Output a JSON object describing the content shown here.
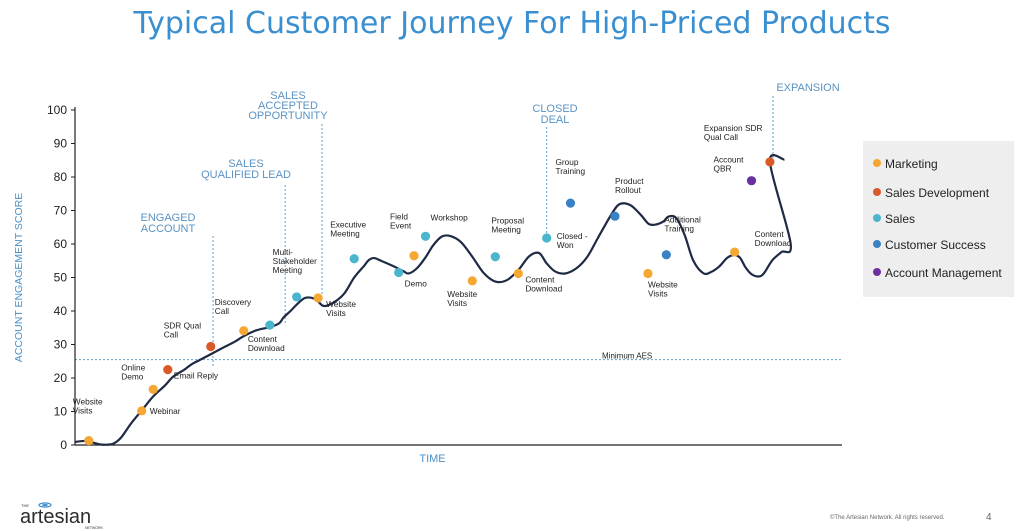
{
  "page": {
    "title": "Typical Customer Journey For High-Priced Products",
    "copyright": "©The Artesian Network. All rights reserved.",
    "page_number": "4",
    "logo_text": "artesian",
    "logo_small_top": "THE",
    "logo_small_bottom": "NETWORK"
  },
  "colors": {
    "Marketing": "#f5a733",
    "Sales Development": "#d85a28",
    "Sales": "#4ab5cc",
    "Customer Success": "#3a82c4",
    "Account Management": "#6b2fa0"
  },
  "legend": [
    {
      "name": "Marketing",
      "label": "Marketing"
    },
    {
      "name": "Sales Development",
      "label": "Sales Development"
    },
    {
      "name": "Sales",
      "label": "Sales"
    },
    {
      "name": "Customer Success",
      "label": "Customer Success"
    },
    {
      "name": "Account Management",
      "label": "Account Management"
    }
  ],
  "chart_data": {
    "type": "line",
    "title": "",
    "xlabel": "TIME",
    "ylabel": "ACCOUNT ENGAGEMENT SCORE",
    "ylim": [
      0,
      100
    ],
    "yticks": [
      0,
      10,
      20,
      30,
      40,
      50,
      60,
      70,
      80,
      90,
      100
    ],
    "legend_position": "right",
    "threshold": {
      "value": 25.5,
      "label": "Minimum AES"
    },
    "curve_x": [
      0,
      1.4,
      3.2,
      4.1,
      5.0,
      6.0,
      7.3,
      8.7,
      10.2,
      11.7,
      12.8,
      14.2,
      15.2,
      16.2,
      17.7,
      19.1,
      20.8,
      22.0,
      23.6,
      25.4,
      26.6,
      27.2,
      28.1,
      28.9,
      30.0,
      31.3,
      32.4,
      33.7,
      35.1,
      36.4,
      37.7,
      38.3,
      39.0,
      40.0,
      41.4,
      42.8,
      43.5,
      44.6,
      45.7,
      46.7,
      47.8,
      48.9,
      50.3,
      51.8,
      53.3,
      54.8,
      56.3,
      57.8,
      59.2,
      60.5,
      61.5,
      62.6,
      63.9,
      65.4,
      66.8,
      68.2,
      69.9,
      71.0,
      72.4,
      73.8,
      74.8,
      75.7,
      76.7,
      77.4,
      78.4,
      79.5,
      80.6,
      81.9,
      82.9,
      84.0,
      85.0,
      85.9,
      86.7,
      87.4,
      88.2,
      89.1,
      89.8,
      90.9,
      92.1,
      93.3
    ],
    "curve_y": [
      0.9,
      1.2,
      0.2,
      0.1,
      0.4,
      2.2,
      6.4,
      10.3,
      14.5,
      17.7,
      20.4,
      22.4,
      24.1,
      25.3,
      27.1,
      28.8,
      30.8,
      32.5,
      34.2,
      35.2,
      36.3,
      38.1,
      40.0,
      41.9,
      43.9,
      43.6,
      41.5,
      42.5,
      45.2,
      50.0,
      53.5,
      55.2,
      55.8,
      54.9,
      53.5,
      51.9,
      51.2,
      52.8,
      56.0,
      59.6,
      62.2,
      62.4,
      60.6,
      56.2,
      51.3,
      48.8,
      49.2,
      52.2,
      56.3,
      57.3,
      54.2,
      51.8,
      51.2,
      52.8,
      56.2,
      61.9,
      68.7,
      71.9,
      71.6,
      68.6,
      66.0,
      65.8,
      66.7,
      68.2,
      67.7,
      62.6,
      55.1,
      51.3,
      51.6,
      53.3,
      55.8,
      56.7,
      55.9,
      53.1,
      51.0,
      50.3,
      51.2,
      55.1,
      57.6,
      60.2
    ],
    "markers": [
      {
        "label": "Website Visits",
        "category": "Marketing",
        "x": 1.8,
        "y": 1.3
      },
      {
        "label": "Webinar",
        "category": "Marketing",
        "x": 8.7,
        "y": 10.2
      },
      {
        "label": "Online Demo",
        "category": "Marketing",
        "x": 10.2,
        "y": 16.6
      },
      {
        "label": "Email Reply",
        "category": "Sales Development",
        "x": 12.1,
        "y": 22.5
      },
      {
        "label": "SDR Qual Call",
        "category": "Sales Development",
        "x": 17.7,
        "y": 29.4
      },
      {
        "label": "Discovery Call",
        "category": "Marketing",
        "x": 22.0,
        "y": 34.1
      },
      {
        "label": "Content Download",
        "category": "Sales",
        "x": 25.4,
        "y": 35.8
      },
      {
        "label": "Multi-Stakeholder Meeting",
        "category": "Sales",
        "x": 28.9,
        "y": 44.2
      },
      {
        "label": "Website Visits",
        "category": "Marketing",
        "x": 31.7,
        "y": 43.9
      },
      {
        "label": "Executive Meeting",
        "category": "Sales",
        "x": 36.4,
        "y": 55.6
      },
      {
        "label": "Demo",
        "category": "Sales",
        "x": 42.2,
        "y": 51.5
      },
      {
        "label": "Field Event",
        "category": "Marketing",
        "x": 44.2,
        "y": 56.5
      },
      {
        "label": "Workshop",
        "category": "Sales",
        "x": 45.7,
        "y": 62.3
      },
      {
        "label": "Website Visits",
        "category": "Marketing",
        "x": 51.8,
        "y": 49.0
      },
      {
        "label": "Proposal Meeting",
        "category": "Sales",
        "x": 54.8,
        "y": 56.2
      },
      {
        "label": "Content Download",
        "category": "Marketing",
        "x": 57.8,
        "y": 51.2
      },
      {
        "label": "Closed - Won",
        "category": "Sales",
        "x": 61.5,
        "y": 61.8
      },
      {
        "label": "Group Training",
        "category": "Customer Success",
        "x": 64.6,
        "y": 72.2
      },
      {
        "label": "Product Rollout",
        "category": "Customer Success",
        "x": 70.4,
        "y": 68.3
      },
      {
        "label": "Website Visits",
        "category": "Marketing",
        "x": 74.7,
        "y": 51.2
      },
      {
        "label": "Additional Training",
        "category": "Customer Success",
        "x": 77.1,
        "y": 56.8
      },
      {
        "label": "Content Download",
        "category": "Marketing",
        "x": 86.0,
        "y": 57.6
      },
      {
        "label": "Account QBR",
        "category": "Account Management",
        "x": 88.2,
        "y": 78.9
      },
      {
        "label": "Expansion SDR Qual Call",
        "category": "Sales Development",
        "x": 90.6,
        "y": 84.5
      }
    ],
    "stages": [
      {
        "label": "ENGAGED ACCOUNT",
        "x": 18.0
      },
      {
        "label": "SALES QUALIFIED LEAD",
        "x": 27.4
      },
      {
        "label": "SALES ACCEPTED OPPORTUNITY",
        "x": 32.2
      },
      {
        "label": "CLOSED DEAL",
        "x": 61.5
      },
      {
        "label": "EXPANSION",
        "x": 91.0
      }
    ]
  }
}
